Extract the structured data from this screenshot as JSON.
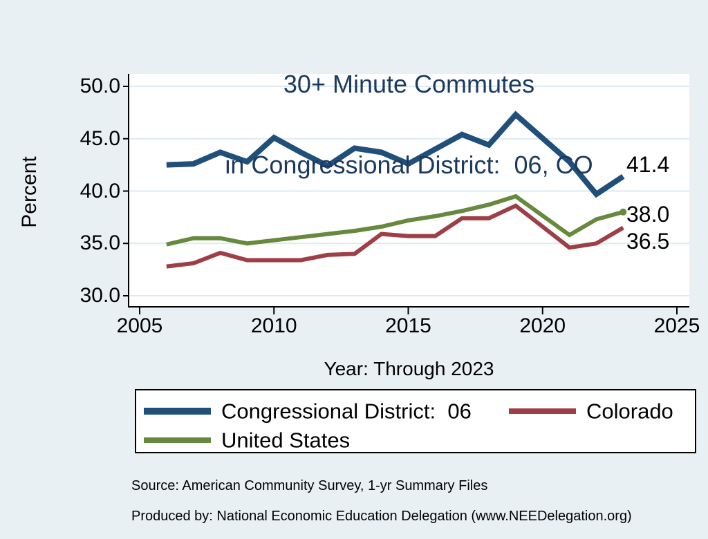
{
  "title": {
    "line1": "30+ Minute Commutes",
    "line2": "in Congressional District:  06, CO"
  },
  "axes": {
    "y_label": "Percent",
    "x_label": "Year: Through 2023",
    "y_tick_labels": [
      "50.0",
      "45.0",
      "40.0",
      "35.0",
      "30.0"
    ],
    "x_tick_labels": [
      "2005",
      "2010",
      "2015",
      "2020",
      "2025"
    ]
  },
  "colors": {
    "background": "#e9f0f3",
    "plot_background": "#ffffff",
    "gridline": "#deeaf2",
    "axis": "#000000",
    "title_text": "#1c3a60",
    "body_text": "#000000",
    "district_line": "#20507a",
    "colorado_line": "#9e3e46",
    "us_line": "#67893d",
    "legend_border": "#000000",
    "legend_background": "#ffffff"
  },
  "legend": {
    "items": [
      {
        "label": "Congressional District:  06",
        "color": "#20507a"
      },
      {
        "label": "Colorado",
        "color": "#9e3e46"
      },
      {
        "label": "United States",
        "color": "#67893d"
      }
    ]
  },
  "end_labels": [
    "41.4",
    "38.0",
    "36.5"
  ],
  "source": {
    "line1": "Source: American Community Survey, 1-yr Summary Files",
    "line2": "Produced by: National Economic Education Delegation (www.NEEDelegation.org)"
  },
  "chart_data": {
    "type": "line",
    "title": "30+ Minute Commutes in Congressional District: 06, CO",
    "xlabel": "Year: Through 2023",
    "ylabel": "Percent",
    "xlim": [
      2005,
      2025
    ],
    "ylim": [
      30,
      50
    ],
    "x_ticks": [
      2005,
      2010,
      2015,
      2020,
      2025
    ],
    "y_ticks": [
      50,
      45,
      40,
      35,
      30
    ],
    "grid": "horizontal",
    "legend_position": "bottom",
    "x": [
      2006,
      2007,
      2008,
      2009,
      2010,
      2011,
      2012,
      2013,
      2014,
      2015,
      2016,
      2017,
      2018,
      2019,
      2021,
      2022,
      2023
    ],
    "series": [
      {
        "name": "Congressional District:  06",
        "color": "#20507a",
        "line_width": 8,
        "end_label": "41.4",
        "end_marker": false,
        "values": [
          42.5,
          42.6,
          43.7,
          42.8,
          45.1,
          43.7,
          42.4,
          44.1,
          43.7,
          42.6,
          44.0,
          45.4,
          44.4,
          47.3,
          42.8,
          39.7,
          41.4
        ]
      },
      {
        "name": "Colorado",
        "color": "#9e3e46",
        "line_width": 6,
        "end_label": "36.5",
        "end_marker": false,
        "values": [
          32.8,
          33.1,
          34.1,
          33.4,
          33.4,
          33.4,
          33.9,
          34.0,
          35.9,
          35.7,
          35.7,
          37.4,
          37.4,
          38.6,
          34.6,
          35.0,
          36.5
        ]
      },
      {
        "name": "United States",
        "color": "#67893d",
        "line_width": 6,
        "end_label": "38.0",
        "end_marker": true,
        "values": [
          34.9,
          35.5,
          35.5,
          35.0,
          35.3,
          35.6,
          35.9,
          36.2,
          36.6,
          37.2,
          37.6,
          38.1,
          38.7,
          39.5,
          35.8,
          37.3,
          38.0
        ]
      }
    ]
  }
}
